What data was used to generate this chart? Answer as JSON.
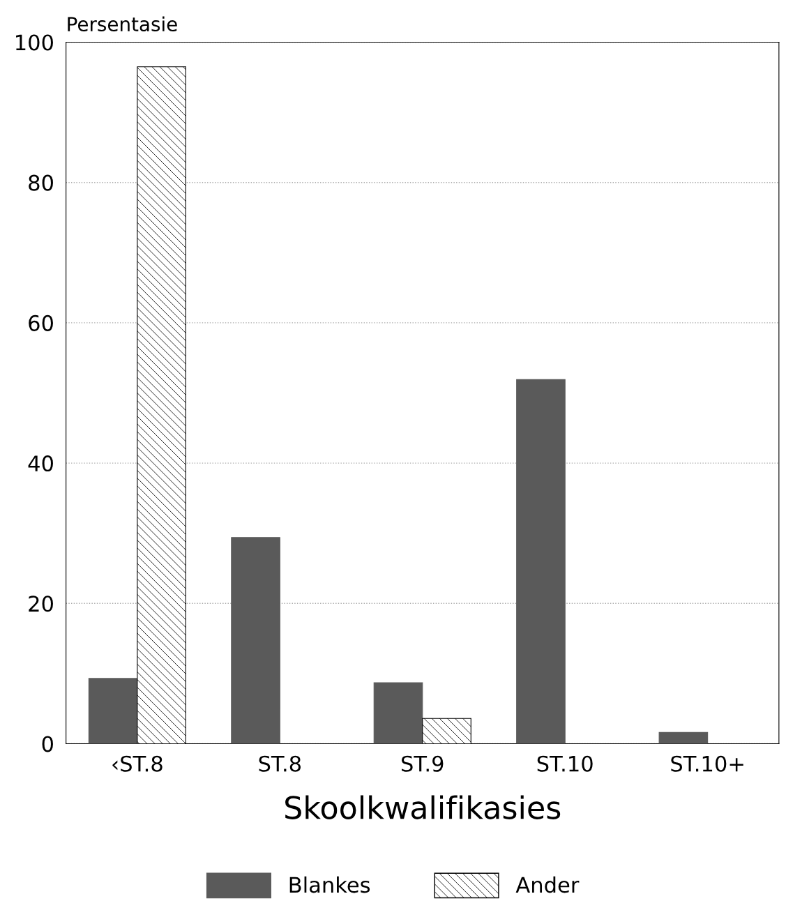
{
  "chart_data": {
    "type": "bar",
    "ylabel": "Persentasie",
    "xlabel": "Skoolkwalifikasies",
    "categories": [
      "‹ST.8",
      "ST.8",
      "ST.9",
      "ST.10",
      "ST.10+"
    ],
    "series": [
      {
        "name": "Blankes",
        "color": "#5a5a5a",
        "values": [
          9.3,
          29.4,
          8.7,
          51.9,
          1.6
        ]
      },
      {
        "name": "Ander",
        "color": "#000000",
        "values": [
          96.5,
          0,
          3.6,
          0,
          0
        ]
      }
    ],
    "ylim": [
      0,
      100
    ],
    "yticks": [
      0,
      20,
      40,
      60,
      80,
      100
    ],
    "grid": "y",
    "legend": "bottom"
  }
}
